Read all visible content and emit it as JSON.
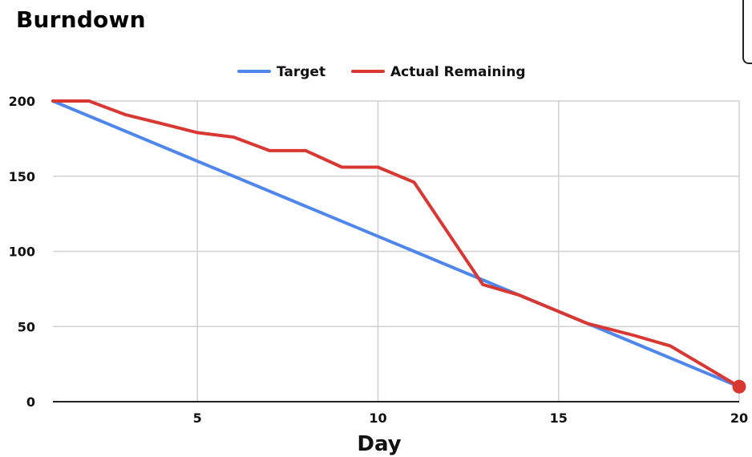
{
  "chart_data": {
    "type": "line",
    "title": "Burndown",
    "xlabel": "Day",
    "ylabel": "",
    "xlim": [
      1,
      20
    ],
    "ylim": [
      0,
      200
    ],
    "xticks": [
      5,
      10,
      15,
      20
    ],
    "yticks": [
      0,
      50,
      100,
      150,
      200
    ],
    "grid": true,
    "legend_position": "top-center",
    "series": [
      {
        "name": "Target",
        "color": "#4f86ec",
        "points": [
          [
            1,
            200
          ],
          [
            20,
            10
          ]
        ]
      },
      {
        "name": "Actual Remaining",
        "color": "#d93731",
        "points": [
          [
            1,
            200
          ],
          [
            2,
            200
          ],
          [
            3,
            191
          ],
          [
            4,
            185
          ],
          [
            5,
            179
          ],
          [
            6,
            176
          ],
          [
            7,
            167
          ],
          [
            8,
            167
          ],
          [
            9,
            156
          ],
          [
            10,
            156
          ],
          [
            11,
            146
          ],
          [
            12.9,
            78
          ],
          [
            13.9,
            71
          ],
          [
            14.9,
            61
          ],
          [
            15.8,
            52
          ],
          [
            17.1,
            44
          ],
          [
            18.1,
            37
          ],
          [
            20,
            10
          ]
        ]
      }
    ],
    "end_marker": {
      "x": 20,
      "y": 10,
      "color": "#d93731"
    }
  }
}
